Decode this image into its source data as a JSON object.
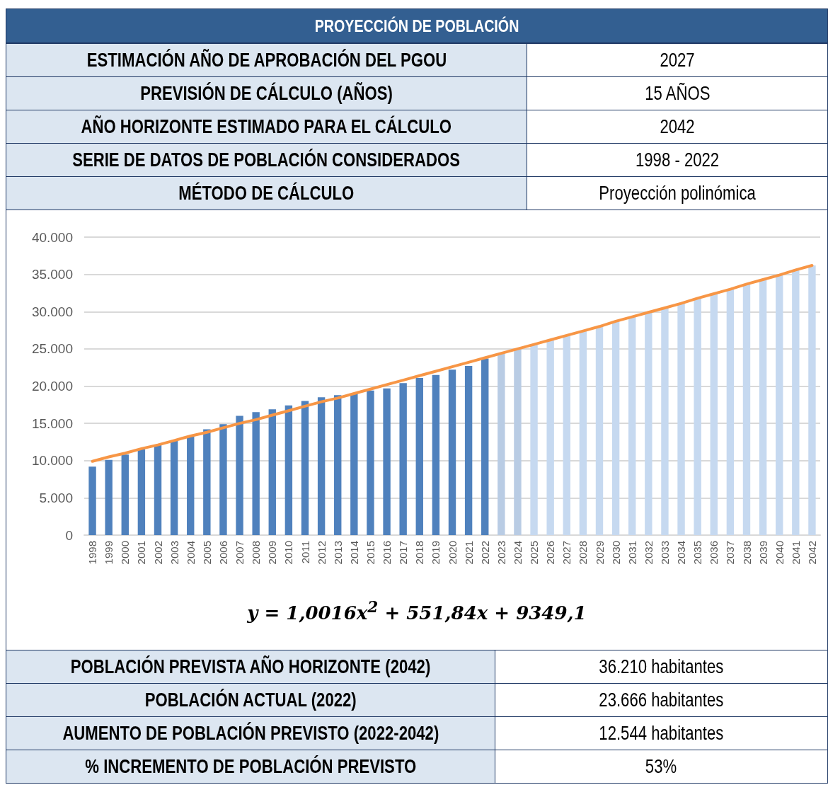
{
  "chart_data": {
    "type": "bar",
    "title": "PROYECCIÓN DE POBLACIÓN",
    "subtitle": "y = 1,0016x$^{2}$ + 551,84x + 9349,1",
    "categories": [
      "1998",
      "1999",
      "2000",
      "2001",
      "2002",
      "2003",
      "2004",
      "2005",
      "2006",
      "2007",
      "2008",
      "2009",
      "2010",
      "2011",
      "2012",
      "2013",
      "2014",
      "2015",
      "2016",
      "2017",
      "2018",
      "2019",
      "2020",
      "2021",
      "2022",
      "2023",
      "2024",
      "2025",
      "2026",
      "2027",
      "2028",
      "2029",
      "2030",
      "2031",
      "2032",
      "2033",
      "2034",
      "2035",
      "2036",
      "2037",
      "2038",
      "2039",
      "2040",
      "2041",
      "2042"
    ],
    "series": [
      {
        "values": [
          9200,
          10100,
          10800,
          11500,
          12100,
          12700,
          13300,
          14200,
          14900,
          16000,
          16500,
          16900,
          17400,
          18000,
          18500,
          18800,
          19000,
          19400,
          19700,
          20400,
          21100,
          21500,
          22200,
          22700,
          23700,
          24400,
          25000,
          25600,
          26200,
          26800,
          27400,
          28000,
          28700,
          29300,
          29900,
          30500,
          31100,
          31800,
          32400,
          33000,
          33700,
          34300,
          34900,
          35600,
          36200
        ],
        "colors": [
          "#4f81bd",
          "#4f81bd",
          "#4f81bd",
          "#4f81bd",
          "#4f81bd",
          "#4f81bd",
          "#4f81bd",
          "#4f81bd",
          "#4f81bd",
          "#4f81bd",
          "#4f81bd",
          "#4f81bd",
          "#4f81bd",
          "#4f81bd",
          "#4f81bd",
          "#4f81bd",
          "#4f81bd",
          "#4f81bd",
          "#4f81bd",
          "#4f81bd",
          "#4f81bd",
          "#4f81bd",
          "#4f81bd",
          "#4f81bd",
          "#4f81bd",
          "#b9cce4",
          "#b9cce4",
          "#c6d9f0",
          "#c6d9f0",
          "#c6d9f0",
          "#c6d9f0",
          "#c6d9f0",
          "#c6d9f0",
          "#c6d9f0",
          "#c6d9f0",
          "#c6d9f0",
          "#c6d9f0",
          "#c6d9f0",
          "#c6d9f0",
          "#c6d9f0",
          "#c6d9f0",
          "#c6d9f0",
          "#c6d9f0",
          "#c6d9f0",
          "#c6d9f0"
        ]
      },
      {
        "type": "line",
        "color": "#f79646",
        "values": [
          9900,
          10500,
          11000,
          11600,
          12100,
          12700,
          13300,
          13800,
          14400,
          15000,
          15500,
          16100,
          16700,
          17300,
          17900,
          18400,
          19000,
          19600,
          20200,
          20800,
          21400,
          22000,
          22600,
          23200,
          23800,
          24400,
          25000,
          25600,
          26200,
          26800,
          27400,
          28000,
          28700,
          29300,
          29900,
          30500,
          31100,
          31800,
          32400,
          33000,
          33700,
          34300,
          34900,
          35600,
          36200
        ]
      }
    ],
    "ylim": [
      0,
      40000
    ],
    "yticks": [
      0,
      {
        "value": 5000,
        "label": "5.000"
      },
      {
        "value": 10000,
        "label": "10.000"
      },
      {
        "value": 15000,
        "label": "15.000"
      },
      {
        "value": 20000,
        "label": "20.000"
      },
      {
        "value": 25000,
        "label": "25.000"
      },
      {
        "value": 30000,
        "label": "30.000"
      },
      {
        "value": 35000,
        "label": "35.000"
      },
      {
        "value": 40000,
        "label": "40.000"
      }
    ],
    "grid": "y",
    "marker": "none",
    "annotations": [
      "ESTIMACIÓN AÑO DE APROBACIÓN DEL PGOU",
      "2027",
      "PREVISIÓN DE CÁLCULO (AÑOS)",
      "15 AÑOS",
      "AÑO HORIZONTE ESTIMADO PARA EL CÁLCULO",
      "2042",
      "SERIE DE DATOS DE POBLACIÓN CONSIDERADOS",
      "1998 - 2022",
      "MÉTODO DE CÁLCULO",
      "Proyección polinómica",
      "POBLACIÓN PREVISTA AÑO HORIZONTE (2042)",
      "36.210 habitantes",
      "POBLACIÓN ACTUAL (2022)",
      "23.666 habitantes",
      "AUMENTO DE POBLACIÓN PREVISTO (2022-2042)",
      "12.544 habitantes",
      "% INCREMENTO DE POBLACIÓN PREVISTO",
      "53%"
    ]
  }
}
